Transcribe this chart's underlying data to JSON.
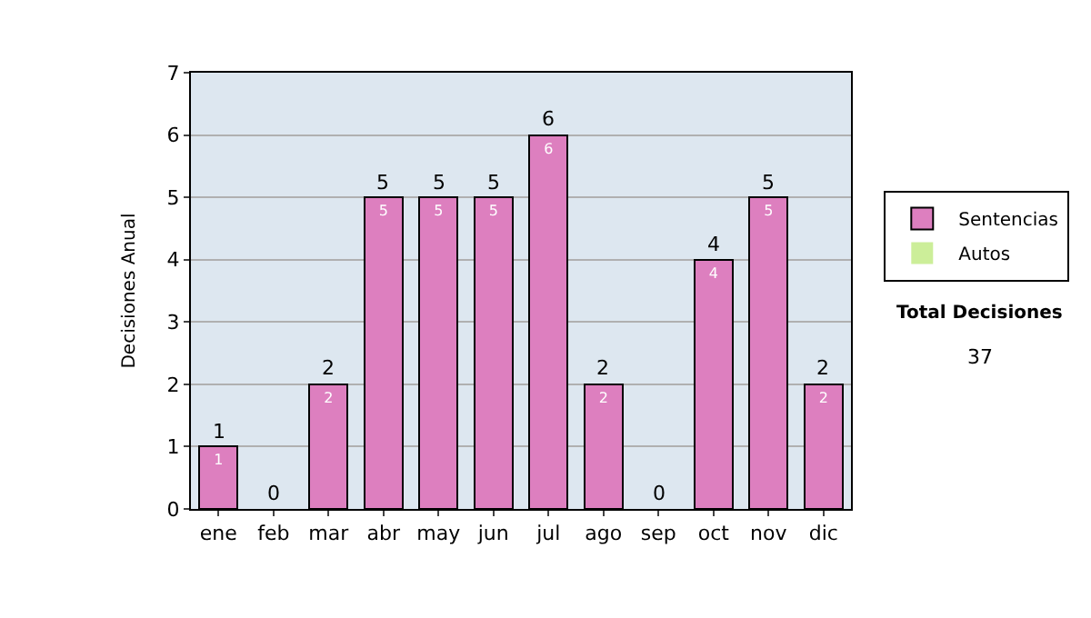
{
  "chart_data": {
    "type": "bar",
    "stacked": true,
    "ylabel": "Decisiones Anual",
    "categories": [
      "ene",
      "feb",
      "mar",
      "abr",
      "may",
      "jun",
      "jul",
      "ago",
      "sep",
      "oct",
      "nov",
      "dic"
    ],
    "series": [
      {
        "name": "Sentencias",
        "color": "#dd7fbf",
        "values": [
          1,
          0,
          2,
          5,
          5,
          5,
          6,
          2,
          0,
          4,
          5,
          2
        ],
        "value_labels": [
          "1",
          null,
          "2",
          "5",
          "5",
          "5",
          "6",
          "2",
          null,
          "4",
          "5",
          "2"
        ]
      },
      {
        "name": "Autos",
        "color": "#ccee99",
        "values": [
          0,
          0,
          0,
          0,
          0,
          0,
          0,
          0,
          0,
          0,
          0,
          0
        ]
      }
    ],
    "totals": [
      "1",
      "0",
      "2",
      "5",
      "5",
      "5",
      "6",
      "2",
      "0",
      "4",
      "5",
      "2"
    ],
    "ylim": [
      0,
      7
    ],
    "yticks": [
      0,
      1,
      2,
      3,
      4,
      5,
      6,
      7
    ],
    "grid": "y",
    "legend": "right",
    "annotations": [
      "Total Decisiones",
      "37"
    ]
  }
}
